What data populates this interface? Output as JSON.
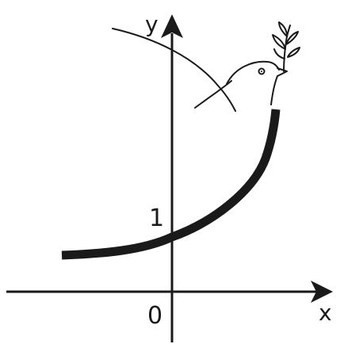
{
  "axes": {
    "x_label": "x",
    "y_label": "y",
    "origin_label": "0",
    "tick_y_label": "1"
  },
  "colors": {
    "ink": "#1a1a1a",
    "background": "#ffffff"
  },
  "curve": {
    "function": "exponential",
    "y_at_zero": 1
  },
  "illustration": {
    "icon": "dove-with-olive-branch-icon"
  }
}
